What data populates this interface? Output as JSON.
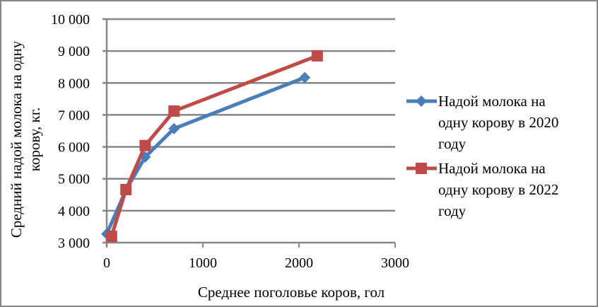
{
  "chart_data": {
    "type": "line",
    "title": "",
    "xlabel": "Среднее поголовье коров, гол",
    "ylabel": "Средний надой молока на одну корову, кг.",
    "xlim": [
      0,
      3000
    ],
    "ylim": [
      3000,
      10000
    ],
    "x_ticks": [
      "0",
      "1000",
      "2000",
      "3000"
    ],
    "y_ticks": [
      "3 000",
      "4 000",
      "5 000",
      "6 000",
      "7 000",
      "8 000",
      "9 000",
      "10 000"
    ],
    "grid": {
      "horizontal": true,
      "vertical": false
    },
    "legend_position": "right",
    "series": [
      {
        "name": "Надой молока на одну корову в 2020 году",
        "color": "#4A7EBB",
        "marker": "diamond",
        "x": [
          0,
          200,
          400,
          700,
          2060
        ],
        "y": [
          3270,
          4650,
          5680,
          6570,
          8170
        ]
      },
      {
        "name": "Надой молока на одну корову в 2022 году",
        "color": "#BE4B48",
        "marker": "square",
        "x": [
          50,
          200,
          400,
          700,
          2190
        ],
        "y": [
          3200,
          4660,
          6040,
          7120,
          8850
        ]
      }
    ]
  },
  "labels": {
    "ylabel_line1": "Средний надой молока на одну",
    "ylabel_line2": "корову, кг.",
    "xlabel": "Среднее поголовье коров, гол",
    "legend": [
      {
        "lines": [
          "Надой молока на",
          "одну корову в 2020",
          "году"
        ]
      },
      {
        "lines": [
          "Надой молока на",
          "одну корову в 2022",
          "году"
        ]
      }
    ]
  }
}
